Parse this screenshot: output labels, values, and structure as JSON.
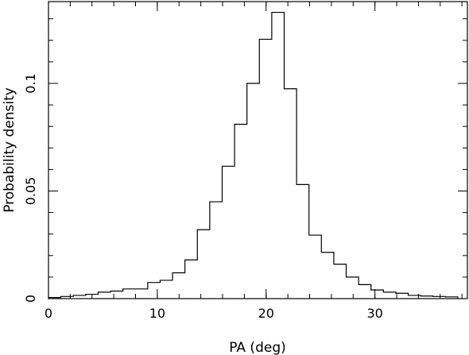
{
  "chart_data": {
    "type": "bar",
    "subtype": "histogram-step",
    "title": "",
    "xlabel": "PA (deg)",
    "ylabel": "Probability density",
    "xlim": [
      0,
      38.5
    ],
    "ylim": [
      0,
      0.138
    ],
    "x_ticks": [
      {
        "value": 0,
        "label": "0"
      },
      {
        "value": 10,
        "label": "10"
      },
      {
        "value": 20,
        "label": "20"
      },
      {
        "value": 30,
        "label": "30"
      }
    ],
    "x_minor_step": 2,
    "y_ticks": [
      {
        "value": 0,
        "label": "0"
      },
      {
        "value": 0.05,
        "label": "0.05"
      },
      {
        "value": 0.1,
        "label": "0.1"
      }
    ],
    "y_minor_step": 0.01,
    "bin_width": 1.14,
    "bin_edges": [
      0,
      1.14,
      2.28,
      3.42,
      4.56,
      5.7,
      6.84,
      7.98,
      9.12,
      10.26,
      11.4,
      12.54,
      13.68,
      14.82,
      15.96,
      17.1,
      18.24,
      19.38,
      20.52,
      21.66,
      22.8,
      23.94,
      25.08,
      26.22,
      27.36,
      28.5,
      29.64,
      30.78,
      31.92,
      33.06,
      34.2,
      35.34,
      36.48,
      37.62
    ],
    "values": [
      0.0005,
      0.001,
      0.0015,
      0.002,
      0.003,
      0.0035,
      0.0045,
      0.0045,
      0.0075,
      0.0085,
      0.012,
      0.018,
      0.032,
      0.045,
      0.0615,
      0.081,
      0.1,
      0.1205,
      0.133,
      0.0975,
      0.053,
      0.0295,
      0.0215,
      0.016,
      0.01,
      0.0065,
      0.004,
      0.003,
      0.0025,
      0.0015,
      0.0012,
      0.001,
      0.0008
    ],
    "grid": false,
    "legend": "none",
    "stroke_color": "#000000",
    "background_color": "#ffffff"
  }
}
